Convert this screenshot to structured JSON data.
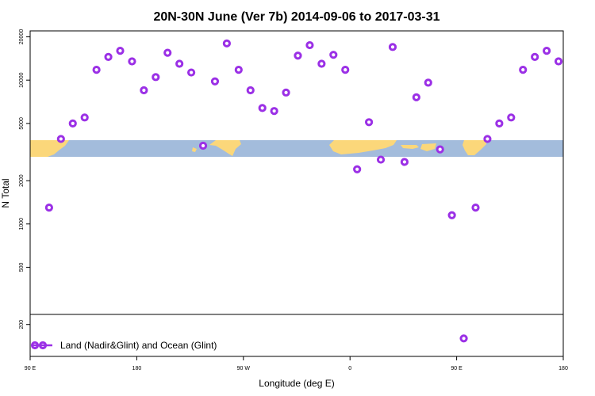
{
  "chart_data": {
    "type": "scatter",
    "title": "20N-30N June (Ver 7b)   2014-09-06 to 2017-03-31",
    "xlabel": "Longitude (deg E)",
    "ylabel": "N Total",
    "y_scale": "log",
    "x_ticks": [
      {
        "value": 90,
        "label": "90 E"
      },
      {
        "value": 180,
        "label": "180"
      },
      {
        "value": 270,
        "label": "90 W"
      },
      {
        "value": 360,
        "label": "0"
      },
      {
        "value": 450,
        "label": "90 E"
      },
      {
        "value": 540,
        "label": "180"
      }
    ],
    "xlim": [
      90,
      540
    ],
    "ylim": [
      120,
      22000
    ],
    "y_ticks": [
      {
        "value": 200,
        "label": "200"
      },
      {
        "value": 500,
        "label": "500"
      },
      {
        "value": 1000,
        "label": "1000"
      },
      {
        "value": 2000,
        "label": "2000"
      },
      {
        "value": 5000,
        "label": "5000"
      },
      {
        "value": 10000,
        "label": "10000"
      },
      {
        "value": 20000,
        "label": "20000"
      }
    ],
    "marker_color": "#9b30e6",
    "map_band": {
      "ocean_color": "#a3bcdc",
      "land_color": "#fbd77a"
    },
    "legend": {
      "label": "Land (Nadir&Glint) and Ocean (Glint)",
      "position": "bottom-left"
    },
    "series": [
      {
        "name": "Land (Nadir&Glint) and Ocean (Glint)",
        "x": [
          106,
          116,
          126,
          136,
          146,
          156,
          166,
          176,
          186,
          196,
          206,
          216,
          226,
          236,
          246,
          256,
          266,
          276,
          286,
          296,
          306,
          316,
          326,
          336,
          346,
          356,
          366,
          376,
          386,
          396,
          406,
          416,
          426,
          436,
          446,
          456,
          466,
          476,
          486,
          496,
          506,
          516,
          526,
          536
        ],
        "y": [
          1300,
          3900,
          5000,
          5500,
          11800,
          14500,
          16000,
          13500,
          8500,
          10500,
          15500,
          13000,
          11300,
          3500,
          9800,
          18000,
          11800,
          8500,
          6400,
          6100,
          8200,
          14800,
          17500,
          13000,
          15000,
          11800,
          2400,
          5100,
          2800,
          17000,
          2700,
          7600,
          9600,
          3300,
          1150,
          160,
          1300,
          3900,
          5000,
          5500,
          11800,
          14500,
          16000,
          13500
        ]
      }
    ]
  }
}
